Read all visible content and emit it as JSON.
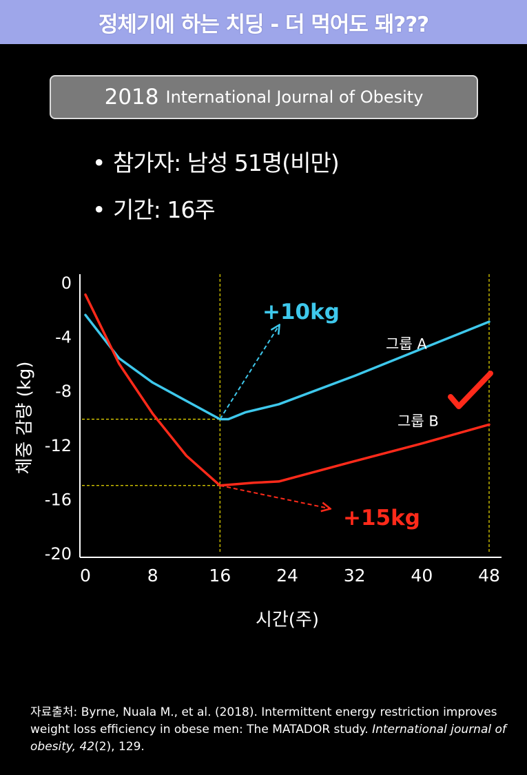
{
  "banner": {
    "title": "정체기에 하는 치딩 - 더 먹어도 돼???"
  },
  "study": {
    "year": "2018",
    "journal": "International Journal of Obesity"
  },
  "bullets": [
    {
      "text": "참가자: 남성 51명(비만)"
    },
    {
      "text": "기간: 16주"
    }
  ],
  "colors": {
    "series_a": "#3ec8ec",
    "series_b": "#ff2a1a",
    "guide": "#f0e000",
    "banner": "#9ea6ea"
  },
  "chart_data": {
    "type": "line",
    "title": "",
    "xlabel": "시간(주)",
    "ylabel": "체중 감량 (kg)",
    "xlim": [
      0,
      48
    ],
    "ylim": [
      -20,
      0
    ],
    "xticks": [
      0,
      8,
      16,
      24,
      32,
      40,
      48
    ],
    "yticks": [
      0,
      -4,
      -8,
      -12,
      -16,
      -20
    ],
    "series": [
      {
        "name": "그룹 A",
        "color": "#3ec8ec",
        "points": [
          [
            0,
            -2.4
          ],
          [
            4,
            -5.6
          ],
          [
            8,
            -7.4
          ],
          [
            16,
            -10.1
          ],
          [
            17,
            -10.1
          ],
          [
            19,
            -9.6
          ],
          [
            23,
            -9.0
          ],
          [
            32,
            -6.9
          ],
          [
            40,
            -4.9
          ],
          [
            48,
            -2.9
          ]
        ]
      },
      {
        "name": "그룹 B",
        "color": "#ff2a1a",
        "points": [
          [
            0,
            -0.9
          ],
          [
            4,
            -6.0
          ],
          [
            8,
            -9.7
          ],
          [
            12,
            -12.8
          ],
          [
            16,
            -15.0
          ],
          [
            20,
            -14.8
          ],
          [
            23,
            -14.7
          ],
          [
            32,
            -13.2
          ],
          [
            40,
            -11.9
          ],
          [
            48,
            -10.5
          ]
        ]
      }
    ],
    "annotations": [
      {
        "text": "+10kg",
        "color": "#3ec8ec",
        "arrow_from": [
          16,
          -10.1
        ],
        "arrow_to": [
          23,
          -3.2
        ]
      },
      {
        "text": "+15kg",
        "color": "#ff2a1a",
        "arrow_from": [
          16,
          -15.0
        ],
        "arrow_to": [
          29,
          -16.7
        ]
      }
    ],
    "guides": {
      "vertical_x": [
        16,
        48
      ],
      "horizontal_y": [
        -10.1,
        -15.0
      ]
    },
    "checkmark_near": "그룹 B"
  },
  "citation": {
    "prefix": "자료출처: Byrne, Nuala M., et al. (2018). Intermittent energy restriction improves weight loss efficiency in obese men: The MATADOR study. ",
    "journal": "International journal of obesity, 42",
    "suffix": "(2), 129."
  }
}
